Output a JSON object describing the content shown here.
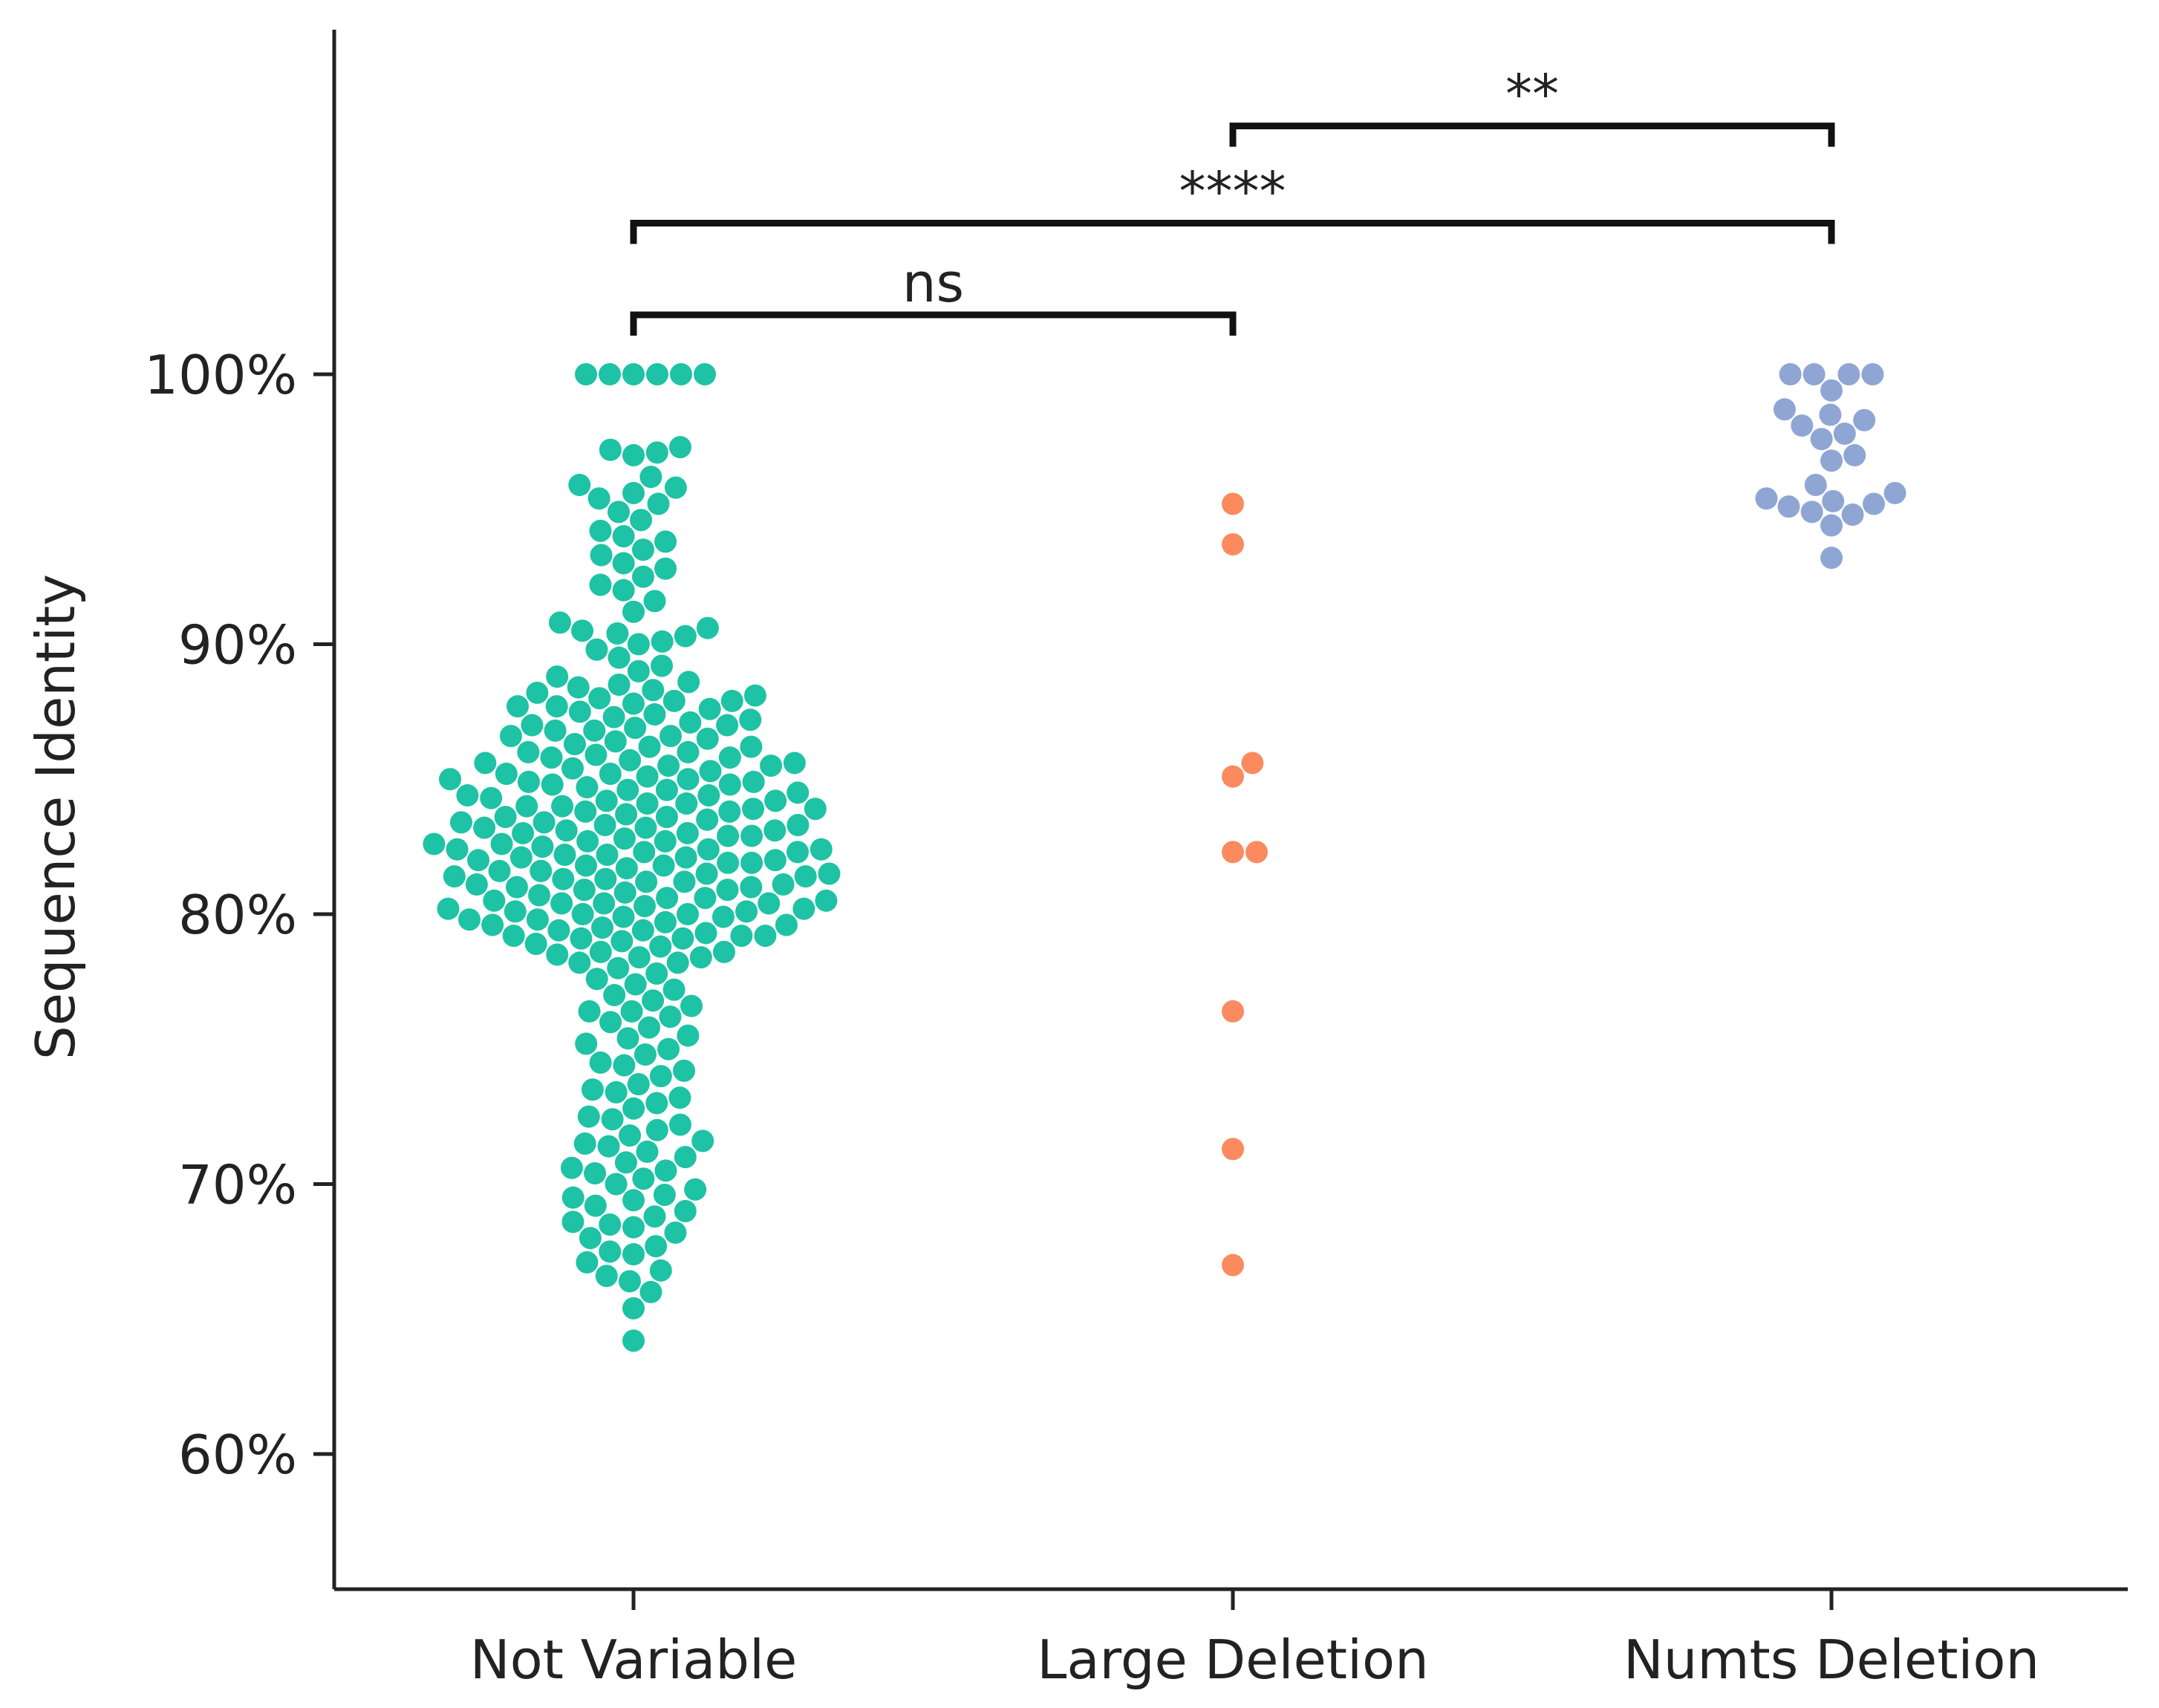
{
  "chart_data": {
    "type": "scatter",
    "ylabel": "Sequence Identity",
    "xlabel": "",
    "ylim": [
      55,
      106
    ],
    "yticks": [
      60,
      70,
      80,
      90,
      100
    ],
    "ytick_suffix": "%",
    "grid": false,
    "categories": [
      "Not Variable",
      "Large Deletion",
      "Numts Deletion"
    ],
    "series": [
      {
        "color": "#1ec2a4",
        "values": [
          100,
          100,
          100,
          100,
          100,
          100,
          97.3,
          97.2,
          97.1,
          97.0,
          96.2,
          95.9,
          95.8,
          95.6,
          95.4,
          95.2,
          94.9,
          94.6,
          94.2,
          94.0,
          93.8,
          93.5,
          93.3,
          93.0,
          92.8,
          92.5,
          92.2,
          92.0,
          91.6,
          91.2,
          90.8,
          90.6,
          90.5,
          90.4,
          90.3,
          90.1,
          90.0,
          89.8,
          89.5,
          89.2,
          89.0,
          88.8,
          88.6,
          88.5,
          88.3,
          88.2,
          88.0,
          87.9,
          87.8,
          87.7,
          87.6,
          87.5,
          87.3,
          87.2,
          87.1,
          87.0,
          86.9,
          86.8,
          86.6,
          86.5,
          86.3,
          86.2,
          86.0,
          85.9,
          85.8,
          85.7,
          85.6,
          85.5,
          85.3,
          85.2,
          85.0,
          84.9,
          84.8,
          84.7,
          84.6,
          84.5,
          84.3,
          84.2,
          84.1,
          84.0,
          83.9,
          83.8,
          83.7,
          83.6,
          83.5,
          83.3,
          83.2,
          83.1,
          83.0,
          82.9,
          82.8,
          82.7,
          82.6,
          82.5,
          82.4,
          82.3,
          82.2,
          82.1,
          82.0,
          81.9,
          81.8,
          81.7,
          81.6,
          81.5,
          81.4,
          81.3,
          81.2,
          81.1,
          81.0,
          80.9,
          80.8,
          80.7,
          80.6,
          80.5,
          80.4,
          80.3,
          80.2,
          80.1,
          80.0,
          79.9,
          79.8,
          79.7,
          79.6,
          79.5,
          79.4,
          79.3,
          79.2,
          79.1,
          79.0,
          78.8,
          78.6,
          78.5,
          78.4,
          78.2,
          78.0,
          77.8,
          77.6,
          77.4,
          77.2,
          77.0,
          76.8,
          76.6,
          76.4,
          76.2,
          76.0,
          75.8,
          75.5,
          75.2,
          75.0,
          74.8,
          74.5,
          74.2,
          74.0,
          73.7,
          73.5,
          73.2,
          73.0,
          72.8,
          72.5,
          72.2,
          72.0,
          71.8,
          71.6,
          71.4,
          71.2,
          71.0,
          70.8,
          70.6,
          70.4,
          70.2,
          70.0,
          69.8,
          69.6,
          69.4,
          69.2,
          69.0,
          68.8,
          68.6,
          68.4,
          68.2,
          68.0,
          67.7,
          67.4,
          67.1,
          66.8,
          66.4,
          66.0,
          65.4,
          64.2,
          88.1,
          87.9,
          87.7,
          87.4,
          86.4,
          85.8,
          85.4,
          84.9,
          84.4,
          83.9,
          83.4,
          82.9,
          82.4,
          81.9,
          81.4,
          80.9,
          80.4,
          79.9,
          79.4,
          79.2,
          78.9,
          78.6,
          86.2,
          85.1,
          84.1,
          83.1,
          82.1,
          81.1,
          80.1,
          79.1,
          87.0,
          85.5,
          83.8,
          82.7,
          81.5,
          80.5,
          84.6,
          83.3,
          82.3,
          81.3,
          85.0,
          84.0,
          83.0,
          82.0,
          81.0,
          80.0,
          86.0,
          84.8,
          83.6,
          82.6,
          81.6,
          80.6,
          79.6,
          85.2,
          84.2,
          83.2,
          82.2,
          81.2,
          80.2,
          79.2,
          86.6,
          84.4,
          82.4,
          80.4,
          78.4,
          88.4,
          86.8,
          85.6,
          83.4,
          81.8,
          79.8,
          78.2,
          76.4,
          75.4,
          74.4,
          73.4,
          72.4,
          71.5,
          70.5,
          69.5,
          68.5,
          67.5,
          66.6
        ]
      },
      {
        "color": "#fb8b5e",
        "values": [
          95.2,
          93.7,
          85.6,
          85.1,
          82.3,
          82.3,
          76.4,
          71.3,
          67.0
        ]
      },
      {
        "color": "#8fa6d4",
        "values": [
          100,
          100,
          100,
          100,
          99.4,
          98.7,
          98.5,
          98.3,
          98.1,
          97.8,
          97.6,
          97.0,
          96.8,
          95.9,
          95.6,
          95.4,
          95.3,
          95.2,
          95.1,
          94.9,
          94.8,
          94.4,
          93.2
        ]
      }
    ],
    "comparisons": [
      {
        "from": 0,
        "to": 1,
        "label": "ns",
        "y": 102.2
      },
      {
        "from": 0,
        "to": 2,
        "label": "****",
        "y": 105.6
      },
      {
        "from": 1,
        "to": 2,
        "label": "**",
        "y": 109.2
      }
    ]
  }
}
